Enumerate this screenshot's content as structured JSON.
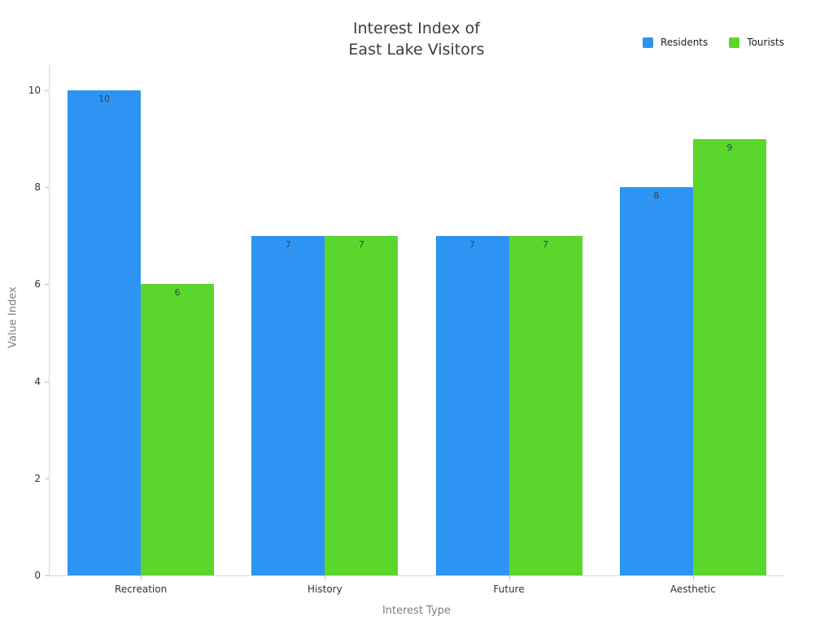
{
  "title": {
    "line1": "Interest Index of",
    "line2": "East Lake Visitors"
  },
  "legend": {
    "items": [
      {
        "label": "Residents",
        "color": "#2e94f3"
      },
      {
        "label": "Tourists",
        "color": "#5bd62c"
      }
    ]
  },
  "axes": {
    "x_title": "Interest Type",
    "y_title": "Value Index"
  },
  "chart_data": {
    "type": "bar",
    "title": "Interest Index of East Lake Visitors",
    "categories": [
      "Recreation",
      "History",
      "Future",
      "Aesthetic"
    ],
    "series": [
      {
        "name": "Residents",
        "color": "#2e94f3",
        "values": [
          10,
          7,
          7,
          8
        ]
      },
      {
        "name": "Tourists",
        "color": "#5bd62c",
        "values": [
          6,
          7,
          7,
          9
        ]
      }
    ],
    "xlabel": "Interest Type",
    "ylabel": "Value Index",
    "ylim": [
      0,
      10
    ],
    "yticks": [
      0,
      2,
      4,
      6,
      8,
      10
    ],
    "grid": false,
    "legend_position": "top-right",
    "bar_labels": true
  }
}
